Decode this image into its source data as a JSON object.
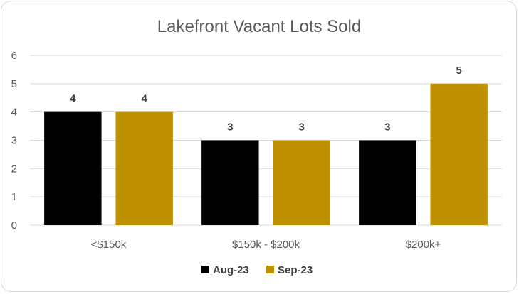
{
  "chart_data": {
    "type": "bar",
    "title": "Lakefront Vacant Lots Sold",
    "xlabel": "",
    "ylabel": "",
    "categories": [
      "<$150k",
      "$150k - $200k",
      "$200k+"
    ],
    "series": [
      {
        "name": "Aug-23",
        "values": [
          4,
          3,
          3
        ],
        "color": "#000000"
      },
      {
        "name": "Sep-23",
        "values": [
          4,
          3,
          5
        ],
        "color": "#bf9000"
      }
    ],
    "ylim": [
      0,
      6
    ],
    "yticks": [
      "0",
      "1",
      "2",
      "3",
      "4",
      "5",
      "6"
    ],
    "grid": true,
    "legend_position": "bottom",
    "data_labels": true
  }
}
